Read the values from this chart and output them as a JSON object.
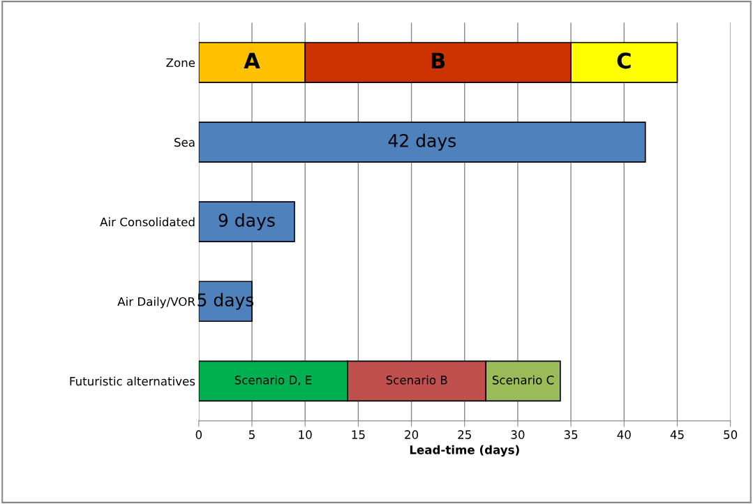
{
  "chart_data": {
    "type": "bar",
    "orientation": "horizontal",
    "stacked": true,
    "xlabel": "Lead-time (days)",
    "categories": [
      "Zone",
      "Sea",
      "Air Consolidated",
      "Air Daily/VOR",
      "Futuristic alternatives"
    ],
    "series": [
      {
        "colors": [
          "#ffc000",
          "#4f81bd",
          "#4f81bd",
          "#4f81bd",
          "#00b050"
        ],
        "values": [
          10,
          42,
          9,
          5,
          14
        ],
        "value_labels": [
          "A",
          "42 days",
          "9 days",
          "5 days",
          "Scenario D, E"
        ]
      },
      {
        "colors": [
          "#cc3300",
          null,
          null,
          null,
          "#c0504d"
        ],
        "values": [
          25,
          null,
          null,
          null,
          13
        ],
        "value_labels": [
          "B",
          null,
          null,
          null,
          "Scenario B"
        ]
      },
      {
        "colors": [
          "#ffff00",
          null,
          null,
          null,
          "#9bbb59"
        ],
        "values": [
          10,
          null,
          null,
          null,
          7
        ],
        "value_labels": [
          "C",
          null,
          null,
          null,
          "Scenario C"
        ]
      }
    ],
    "xlim": [
      0,
      50
    ],
    "xticks": [
      0,
      5,
      10,
      15,
      20,
      25,
      30,
      35,
      40,
      45,
      50
    ],
    "grid": "x"
  }
}
